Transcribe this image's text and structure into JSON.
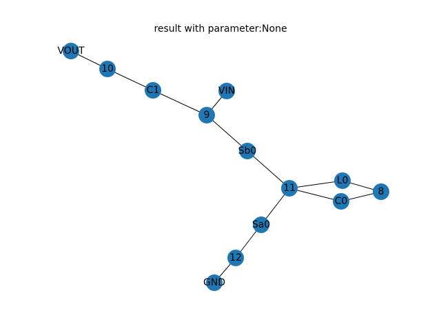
{
  "title": "result with parameter:None",
  "colors": {
    "node": "#1f77b4",
    "edge": "#000000",
    "label": "#000000"
  },
  "nodes": [
    {
      "id": "VOUT",
      "label": "VOUT"
    },
    {
      "id": "10",
      "label": "10"
    },
    {
      "id": "C1",
      "label": "C1"
    },
    {
      "id": "VIN",
      "label": "VIN"
    },
    {
      "id": "9",
      "label": "9"
    },
    {
      "id": "Sb0",
      "label": "Sb0"
    },
    {
      "id": "11",
      "label": "11"
    },
    {
      "id": "L0",
      "label": "L0"
    },
    {
      "id": "C0",
      "label": "C0"
    },
    {
      "id": "8",
      "label": "8"
    },
    {
      "id": "Sa0",
      "label": "Sa0"
    },
    {
      "id": "12",
      "label": "12"
    },
    {
      "id": "GND",
      "label": "GND"
    }
  ],
  "edges": [
    [
      "VOUT",
      "10"
    ],
    [
      "10",
      "C1"
    ],
    [
      "C1",
      "9"
    ],
    [
      "VIN",
      "9"
    ],
    [
      "9",
      "Sb0"
    ],
    [
      "Sb0",
      "11"
    ],
    [
      "11",
      "L0"
    ],
    [
      "11",
      "C0"
    ],
    [
      "L0",
      "8"
    ],
    [
      "C0",
      "8"
    ],
    [
      "11",
      "Sa0"
    ],
    [
      "Sa0",
      "12"
    ],
    [
      "12",
      "GND"
    ]
  ]
}
